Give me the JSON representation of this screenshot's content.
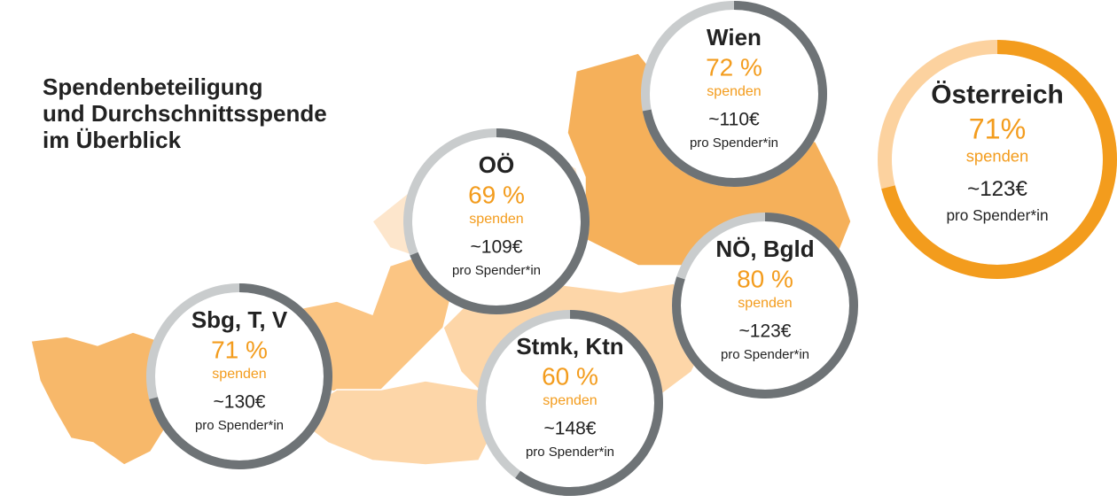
{
  "title": [
    "Spendenbeteiligung",
    "und Durchschnittsspende",
    "im Überblick"
  ],
  "regions": [
    {
      "name": "Wien",
      "value": 72,
      "value_label": "72 %",
      "note": "spenden",
      "amount": "~110€",
      "amount_note": "pro Spender*in"
    },
    {
      "name": "OÖ",
      "value": 69,
      "value_label": "69 %",
      "note": "spenden",
      "amount": "~109€",
      "amount_note": "pro Spender*in"
    },
    {
      "name": "NÖ, Bgld",
      "value": 80,
      "value_label": "80 %",
      "note": "spenden",
      "amount": "~123€",
      "amount_note": "pro Spender*in"
    },
    {
      "name": "Sbg, T, V",
      "value": 71,
      "value_label": "71 %",
      "note": "spenden",
      "amount": "~130€",
      "amount_note": "pro Spender*in"
    },
    {
      "name": "Stmk, Ktn",
      "value": 60,
      "value_label": "60 %",
      "note": "spenden",
      "amount": "~148€",
      "amount_note": "pro Spender*in"
    },
    {
      "name": "Österreich",
      "value": 71,
      "value_label": "71%",
      "note": "spenden",
      "amount": "~123€",
      "amount_note": "pro Spender*in"
    }
  ]
}
